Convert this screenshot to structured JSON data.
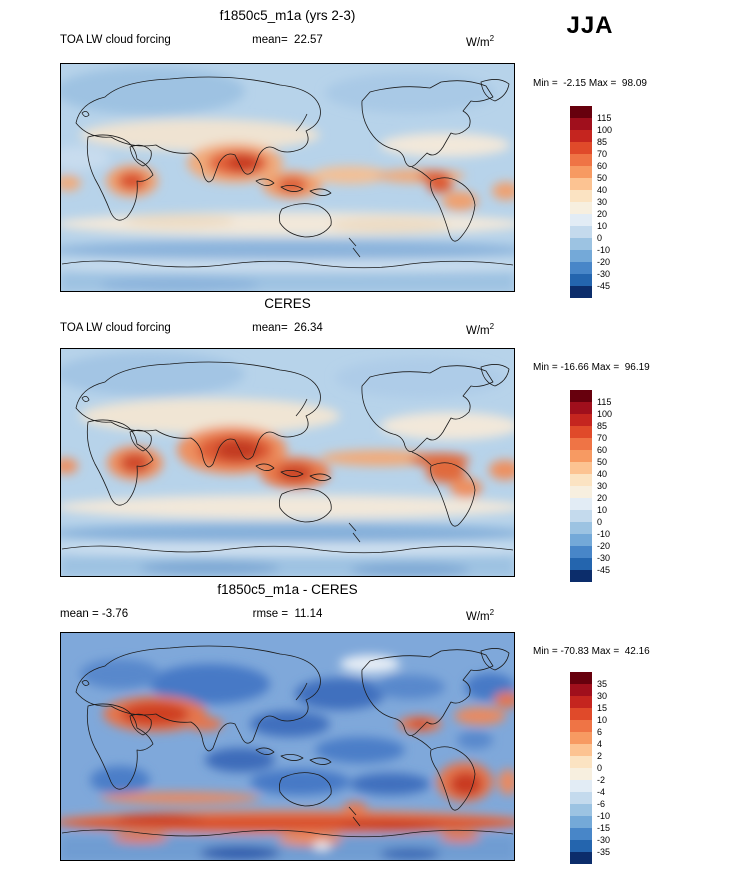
{
  "header": {
    "season": "JJA"
  },
  "colorbar_colors": [
    "#67000d",
    "#a00f1c",
    "#c5251f",
    "#e04a2a",
    "#ef7445",
    "#f79a62",
    "#fcc392",
    "#fbe3c2",
    "#f7efdf",
    "#e2ecf5",
    "#c4daed",
    "#9cc3e2",
    "#74a9d8",
    "#4886c8",
    "#2465ae",
    "#0c2d6b"
  ],
  "panels": [
    {
      "title": "f1850c5_m1a (yrs 2-3)",
      "left_label": "TOA LW cloud forcing",
      "center_label": "mean=  22.57",
      "units_base": "W/m",
      "units_sup": "2",
      "min_max": "Min =  -2.15 Max =  98.09",
      "colorbar_levels": [
        115,
        100,
        85,
        70,
        60,
        50,
        40,
        30,
        20,
        10,
        0,
        -10,
        -20,
        -30,
        -45
      ]
    },
    {
      "title": "CERES",
      "left_label": "TOA LW cloud forcing",
      "center_label": "mean=  26.34",
      "units_base": "W/m",
      "units_sup": "2",
      "min_max": "Min = -16.66 Max =  96.19",
      "colorbar_levels": [
        115,
        100,
        85,
        70,
        60,
        50,
        40,
        30,
        20,
        10,
        0,
        -10,
        -20,
        -30,
        -45
      ]
    },
    {
      "title": "f1850c5_m1a - CERES",
      "left_label": "mean = -3.76",
      "center_label": "rmse =  11.14",
      "units_base": "W/m",
      "units_sup": "2",
      "min_max": "Min = -70.83 Max =  42.16",
      "colorbar_levels": [
        35,
        30,
        15,
        10,
        6,
        4,
        2,
        0,
        -2,
        -4,
        -6,
        -10,
        -15,
        -30,
        -35
      ]
    }
  ],
  "chart_data": [
    {
      "type": "heatmap",
      "title": "f1850c5_m1a (yrs 2-3)",
      "variable": "TOA LW cloud forcing",
      "season": "JJA",
      "units": "W/m^2",
      "mean": 22.57,
      "min": -2.15,
      "max": 98.09,
      "colorbar_levels": [
        115,
        100,
        85,
        70,
        60,
        50,
        40,
        30,
        20,
        10,
        0,
        -10,
        -20,
        -30,
        -45
      ],
      "layout": "global latitude-longitude filled-contour map, legend colorbar on right"
    },
    {
      "type": "heatmap",
      "title": "CERES",
      "variable": "TOA LW cloud forcing",
      "season": "JJA",
      "units": "W/m^2",
      "mean": 26.34,
      "min": -16.66,
      "max": 96.19,
      "colorbar_levels": [
        115,
        100,
        85,
        70,
        60,
        50,
        40,
        30,
        20,
        10,
        0,
        -10,
        -20,
        -30,
        -45
      ],
      "layout": "global latitude-longitude filled-contour map, legend colorbar on right"
    },
    {
      "type": "heatmap",
      "title": "f1850c5_m1a - CERES",
      "variable": "TOA LW cloud forcing difference",
      "season": "JJA",
      "units": "W/m^2",
      "mean": -3.76,
      "rmse": 11.14,
      "min": -70.83,
      "max": 42.16,
      "colorbar_levels": [
        35,
        30,
        15,
        10,
        6,
        4,
        2,
        0,
        -2,
        -4,
        -6,
        -10,
        -15,
        -30,
        -35
      ],
      "layout": "global latitude-longitude filled-contour difference map, legend colorbar on right"
    }
  ]
}
